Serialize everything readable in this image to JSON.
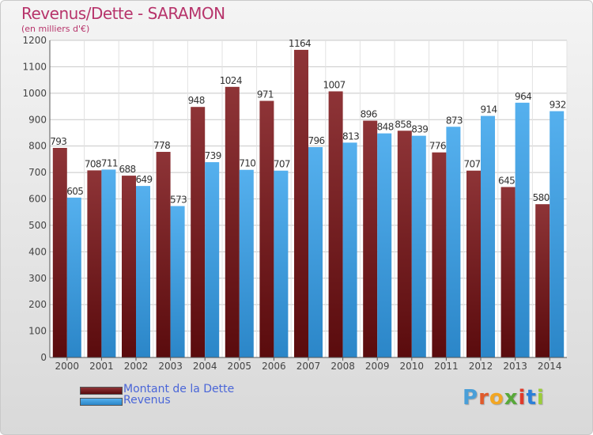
{
  "title": "Revenus/Dette - SARAMON",
  "subtitle": "(en milliers d'€)",
  "logo": {
    "text": "Proxiti",
    "letter_colors": [
      "#4a9fd8",
      "#e05a2b",
      "#f2a623",
      "#58a83a",
      "#e03a2b",
      "#2b7fd8",
      "#9bcd3a"
    ]
  },
  "chart_data": {
    "type": "bar",
    "categories": [
      "2000",
      "2001",
      "2002",
      "2003",
      "2004",
      "2005",
      "2006",
      "2007",
      "2008",
      "2009",
      "2010",
      "2011",
      "2012",
      "2013",
      "2014"
    ],
    "series": [
      {
        "name": "Montant de la Dette",
        "color": "#7a1d1f",
        "values": [
          793,
          708,
          688,
          778,
          948,
          1024,
          971,
          1164,
          1007,
          896,
          858,
          776,
          707,
          645,
          580
        ]
      },
      {
        "name": "Revenus",
        "color": "#3d9ee0",
        "values": [
          605,
          711,
          649,
          573,
          739,
          710,
          707,
          796,
          813,
          848,
          839,
          873,
          914,
          964,
          932
        ]
      }
    ],
    "ylim": [
      0,
      1200
    ],
    "yticks": [
      0,
      100,
      200,
      300,
      400,
      500,
      600,
      700,
      800,
      900,
      1000,
      1100,
      1200
    ],
    "grid": true,
    "legend": "bottom-left"
  }
}
